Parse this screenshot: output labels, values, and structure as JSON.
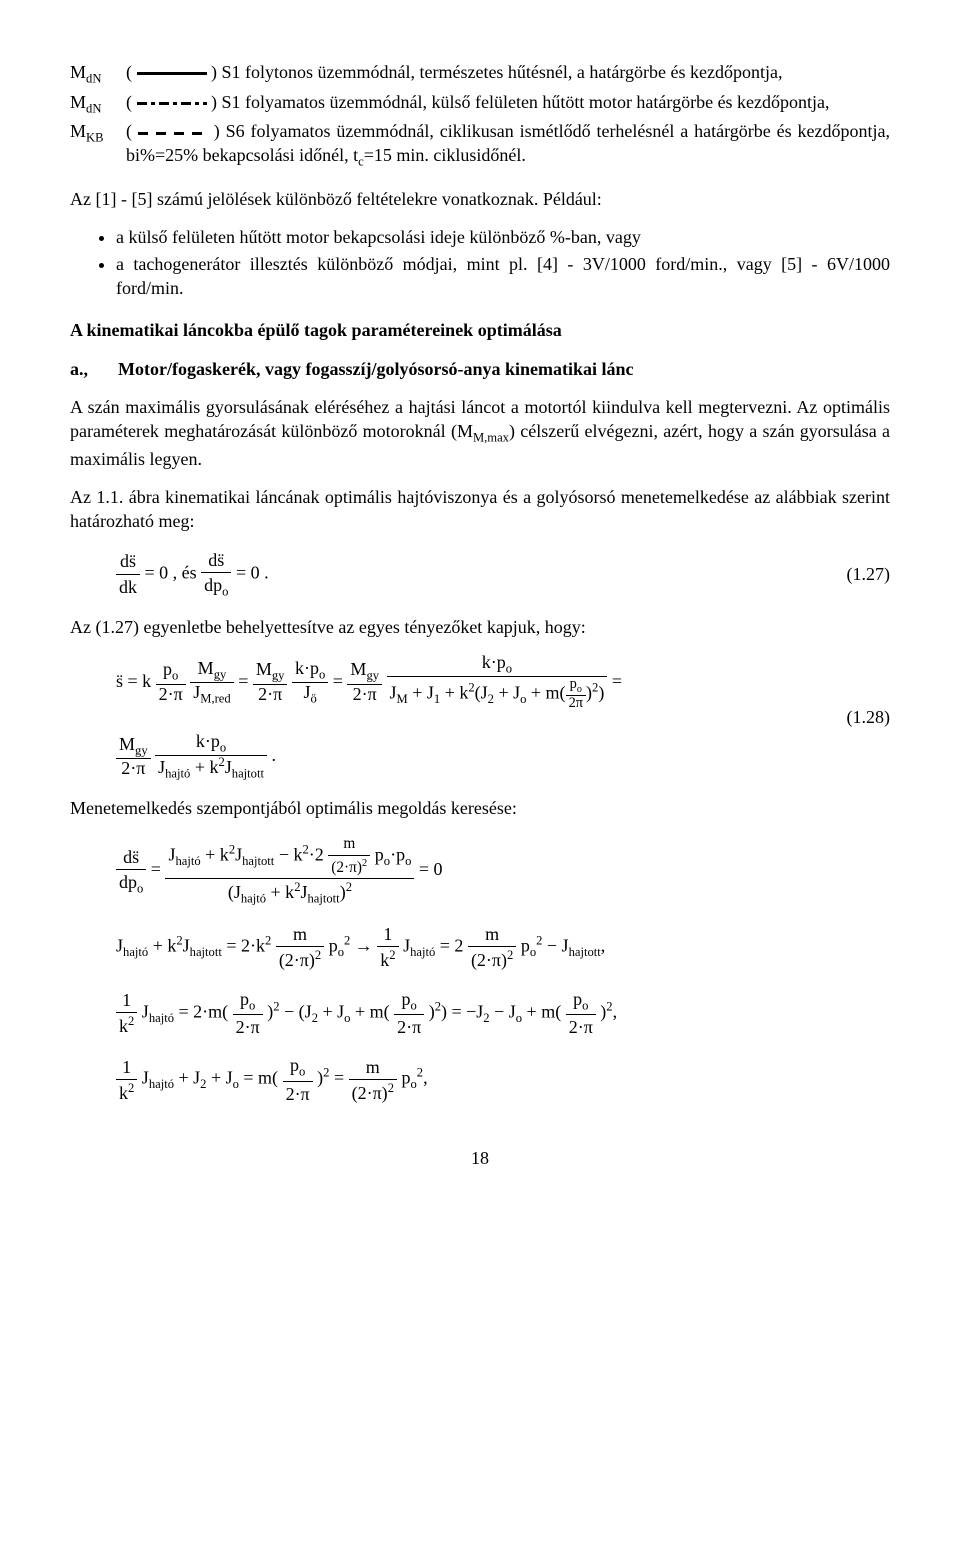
{
  "defs": [
    {
      "label_html": "M<span class='sub'>dN</span>",
      "line": "solid",
      "text": "S1 folytonos üzemmódnál, természetes hűtésnél, a határgörbe és kezdőpontja,"
    },
    {
      "label_html": "M<span class='sub'>dN</span>",
      "line": "dashdot",
      "text": "S1 folyamatos üzemmódnál, külső felületen hűtött motor határgörbe és kezdőpontja,"
    },
    {
      "label_html": "M<span class='sub'>KB</span>",
      "line": "dashed",
      "text_html": "S6 folyamatos üzemmódnál, ciklikusan ismétlődő terhelésnél a határgörbe és kezdőpontja, bi%=25% bekapcsolási időnél, t<span class='sub'>c</span>=15 min. ciklusidőnél."
    }
  ],
  "para1": "Az [1] - [5] számú jelölések különböző feltételekre vonatkoznak. Például:",
  "bullets": [
    "a külső felületen hűtött motor bekapcsolási ideje különböző %-ban, vagy",
    "a tachogenerátor illesztés különböző módjai, mint pl. [4] - 3V/1000 ford/min., vagy [5] - 6V/1000 ford/min."
  ],
  "section_title": "A kinematikai láncokba épülő tagok paramétereinek optimálása",
  "subsection": {
    "label": "a.,",
    "text": "Motor/fogaskerék, vagy fogasszíj/golyósorsó-anya kinematikai lánc"
  },
  "para2_html": "A szán maximális gyorsulásának eléréséhez a hajtási láncot a motortól kiindulva kell megtervezni. Az optimális paraméterek meghatározását különböző motoroknál (M<span class='sub'>M,max</span>) célszerű elvégezni, azért, hogy a szán gyorsulása a maximális legyen.",
  "para3": "Az 1.1. ábra kinematikai láncának optimális hajtóviszonya és a golyósorsó menetemelkedése az alábbiak szerint határozható meg:",
  "eq127": {
    "num": "(1.27)"
  },
  "para4": "Az (1.27) egyenletbe behelyettesítve az egyes tényezőket kapjuk, hogy:",
  "eq128": {
    "num": "(1.28)"
  },
  "para5": "Menetemelkedés szempontjából optimális megoldás keresése:",
  "pagenum": "18",
  "colors": {
    "text": "#000000",
    "bg": "#ffffff"
  },
  "typography": {
    "family": "Times New Roman",
    "size_pt": 13
  }
}
